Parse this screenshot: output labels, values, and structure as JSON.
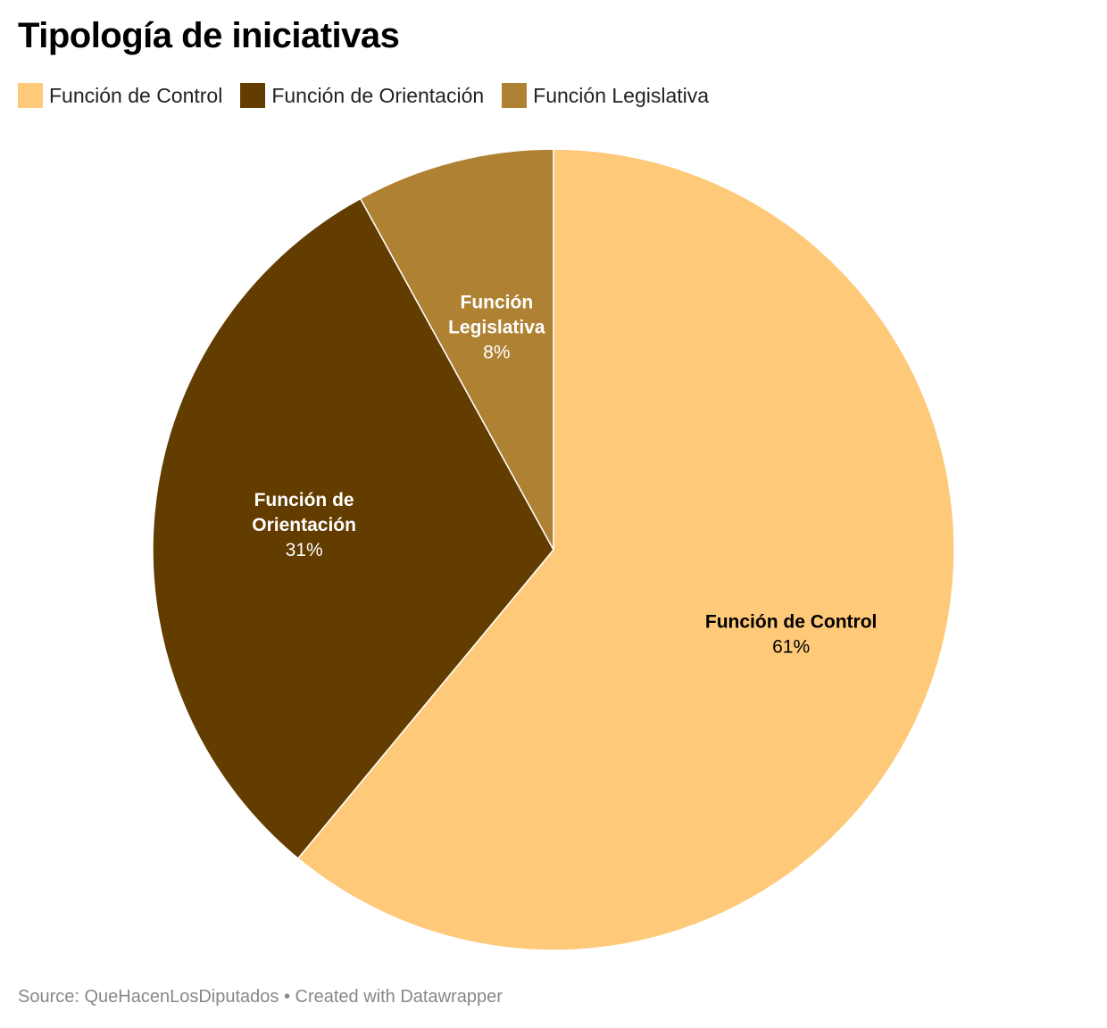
{
  "chart_data": {
    "type": "pie",
    "title": "Tipología de iniciativas",
    "slices": [
      {
        "name": "Función de Control",
        "value": 61,
        "label": "61%",
        "label_lines": [
          "Función de Control"
        ],
        "color": "#fec978",
        "text_color": "#000000"
      },
      {
        "name": "Función de Orientación",
        "value": 31,
        "label": "31%",
        "label_lines": [
          "Función de",
          "Orientación"
        ],
        "color": "#633c00",
        "text_color": "#ffffff"
      },
      {
        "name": "Función Legislativa",
        "value": 8,
        "label": "8%",
        "label_lines": [
          "Función",
          "Legislativa"
        ],
        "color": "#af8133",
        "text_color": "#ffffff"
      }
    ],
    "legend_position": "top-left",
    "start_angle_deg": 0,
    "direction": "clockwise"
  },
  "footer": {
    "text": "Source: QueHacenLosDiputados • Created with Datawrapper"
  }
}
